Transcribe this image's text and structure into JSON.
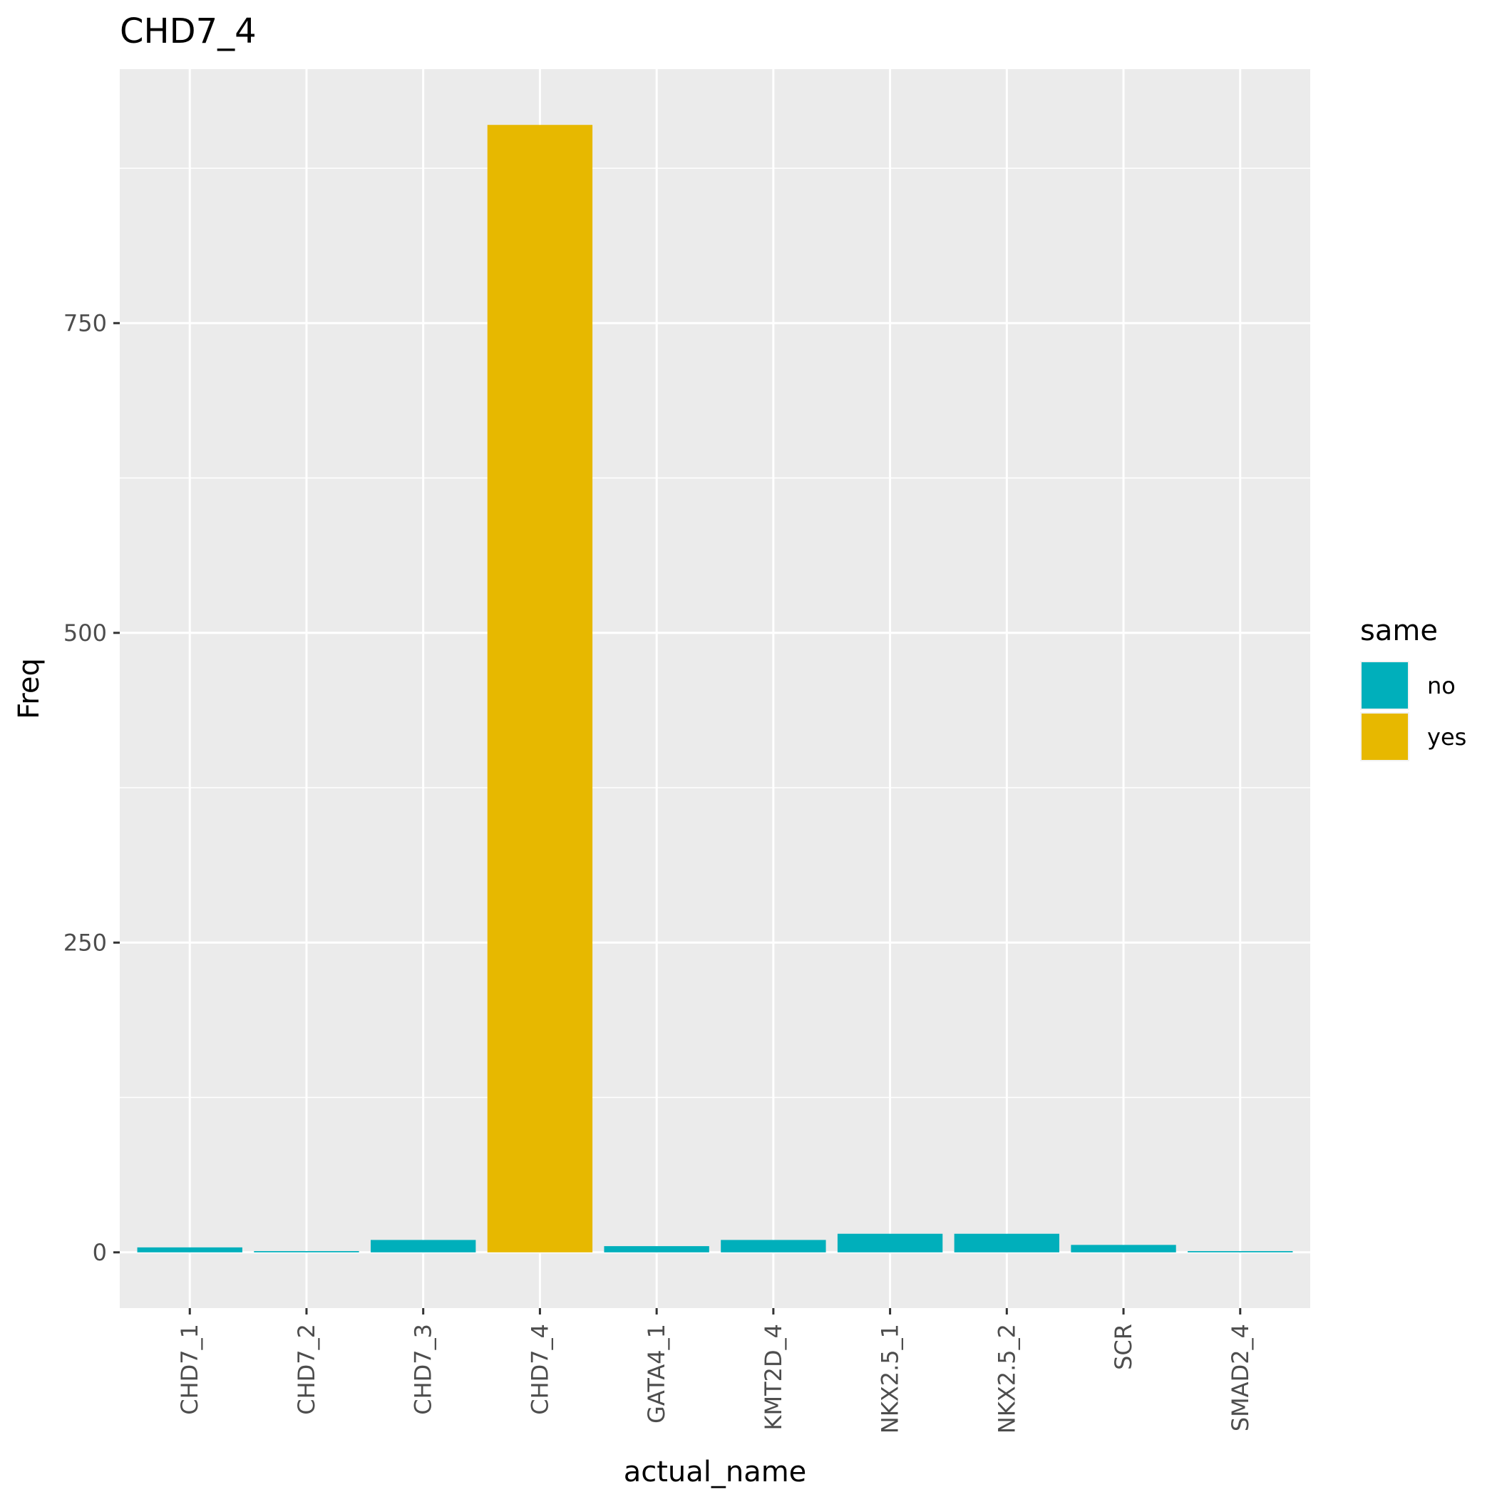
{
  "chart_data": {
    "type": "bar",
    "title": "CHD7_4",
    "xlabel": "actual_name",
    "ylabel": "Freq",
    "categories": [
      "CHD7_1",
      "CHD7_2",
      "CHD7_3",
      "CHD7_4",
      "GATA4_1",
      "KMT2D_4",
      "NKX2.5_1",
      "NKX2.5_2",
      "SCR",
      "SMAD2_4"
    ],
    "values": [
      4,
      1,
      10,
      910,
      5,
      10,
      15,
      15,
      6,
      1
    ],
    "groups": [
      "no",
      "no",
      "no",
      "yes",
      "no",
      "no",
      "no",
      "no",
      "no",
      "no"
    ],
    "ylim": [
      -45,
      955
    ],
    "yticks": [
      0,
      250,
      500,
      750
    ],
    "grid": true,
    "legend": {
      "title": "same",
      "position": "right",
      "entries": [
        {
          "label": "no",
          "color": "#00AFBB"
        },
        {
          "label": "yes",
          "color": "#E7B800"
        }
      ]
    }
  },
  "colors": {
    "panel": "#EBEBEB",
    "grid": "#FFFFFF",
    "tick": "#333333"
  }
}
